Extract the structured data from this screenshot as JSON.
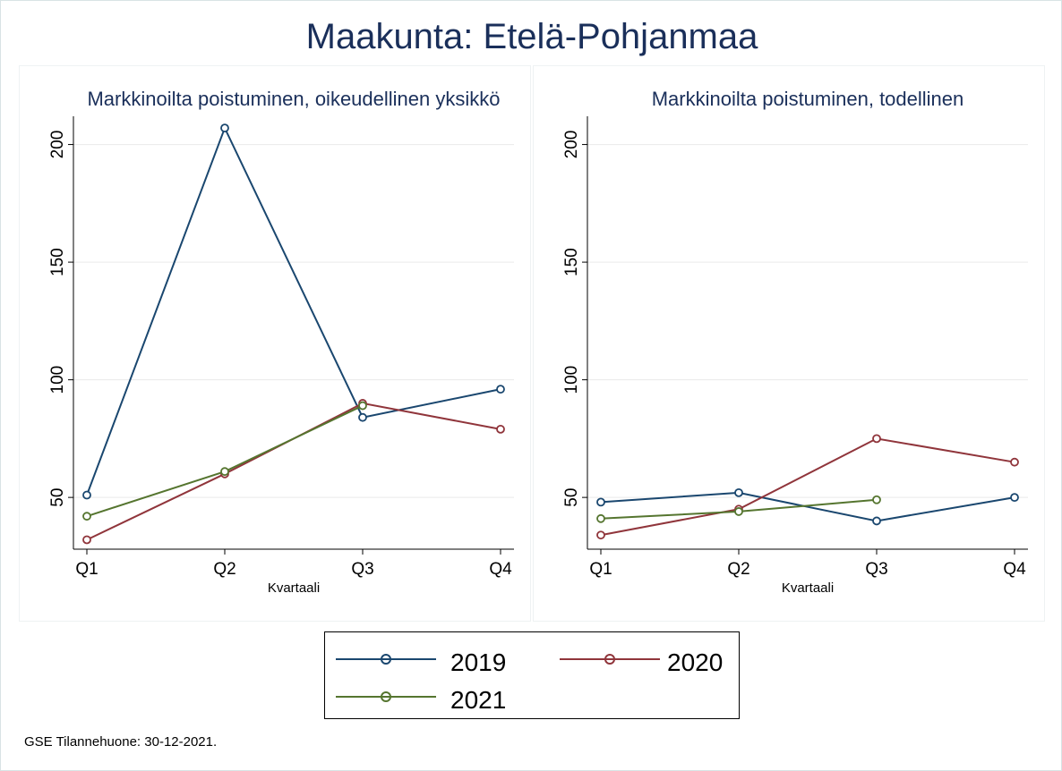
{
  "title": "Maakunta: Etelä-Pohjanmaa",
  "note": "GSE Tilannehuone: 30-12-2021.",
  "colors": {
    "2019": "#1a476f",
    "2020": "#90353b",
    "2021": "#55752f",
    "grid": "#eaeaea",
    "text": "#1a2f5a"
  },
  "chart_data": [
    {
      "type": "line",
      "title": "Markkinoilta poistuminen, oikeudellinen yksikkö",
      "xlabel": "Kvartaali",
      "ylabel": "",
      "categories": [
        "Q1",
        "Q2",
        "Q3",
        "Q4"
      ],
      "ylim": [
        28,
        212
      ],
      "yticks": [
        50,
        100,
        150,
        200
      ],
      "grid": true,
      "series": [
        {
          "name": "2019",
          "values": [
            51,
            207,
            84,
            96
          ]
        },
        {
          "name": "2020",
          "values": [
            32,
            60,
            90,
            79
          ]
        },
        {
          "name": "2021",
          "values": [
            42,
            61,
            89,
            null
          ]
        }
      ]
    },
    {
      "type": "line",
      "title": "Markkinoilta poistuminen, todellinen",
      "xlabel": "Kvartaali",
      "ylabel": "",
      "categories": [
        "Q1",
        "Q2",
        "Q3",
        "Q4"
      ],
      "ylim": [
        28,
        212
      ],
      "yticks": [
        50,
        100,
        150,
        200
      ],
      "grid": true,
      "series": [
        {
          "name": "2019",
          "values": [
            48,
            52,
            40,
            50
          ]
        },
        {
          "name": "2020",
          "values": [
            34,
            45,
            75,
            65
          ]
        },
        {
          "name": "2021",
          "values": [
            41,
            44,
            49,
            null
          ]
        }
      ]
    }
  ],
  "legend": {
    "placement": "bottom",
    "items": [
      {
        "label": "2019",
        "color_key": "2019"
      },
      {
        "label": "2020",
        "color_key": "2020"
      },
      {
        "label": "2021",
        "color_key": "2021"
      }
    ]
  }
}
